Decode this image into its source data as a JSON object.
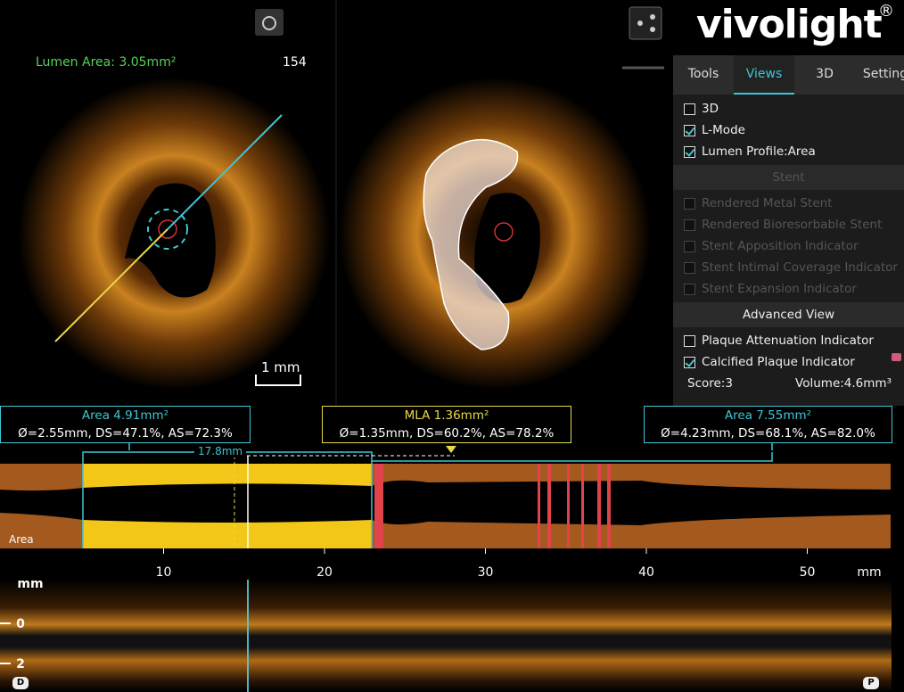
{
  "logo": {
    "text": "vivolight",
    "mark": "®"
  },
  "left_view": {
    "measurement": "Lumen Area: 3.05mm²",
    "frame": "154",
    "scale": "1 mm"
  },
  "tabs": {
    "items": [
      "Tools",
      "Views",
      "3D",
      "Setting"
    ],
    "active": 1
  },
  "views_panel": {
    "options": [
      {
        "label": "3D",
        "checked": false
      },
      {
        "label": "L-Mode",
        "checked": true
      },
      {
        "label": "Lumen Profile:Area",
        "checked": true
      }
    ],
    "stent_header": "Stent",
    "stent_options": [
      "Rendered Metal Stent",
      "Rendered Bioresorbable Stent",
      "Stent Apposition Indicator",
      "Stent Intimal Coverage Indicator",
      "Stent Expansion Indicator"
    ],
    "advanced_header": "Advanced View",
    "advanced_options": [
      {
        "label": "Plaque Attenuation Indicator",
        "checked": false
      },
      {
        "label": "Calcified Plaque Indicator",
        "checked": true
      }
    ],
    "score": "Score:3",
    "volume": "Volume:4.6mm³"
  },
  "measurements": [
    {
      "title": "Area 4.91mm²",
      "detail": "Ø=2.55mm, DS=47.1%, AS=72.3%"
    },
    {
      "title": "MLA 1.36mm²",
      "detail": "Ø=1.35mm, DS=60.2%, AS=78.2%"
    },
    {
      "title": "Area 7.55mm²",
      "detail": "Ø=4.23mm, DS=68.1%, AS=82.0%"
    }
  ],
  "length": "17.8mm",
  "profile_label": "Area",
  "l_mode": {
    "x_ticks": [
      10,
      20,
      30,
      40,
      50
    ],
    "x_unit": "mm",
    "y_unit": "mm",
    "y_ticks": [
      "0",
      "2"
    ],
    "distal": "D",
    "proximal": "P"
  }
}
